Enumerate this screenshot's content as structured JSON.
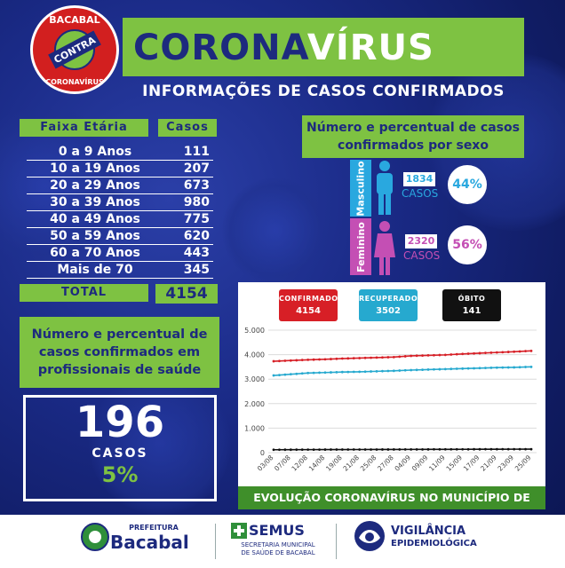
{
  "brand": {
    "logo_top": "BACABAL",
    "logo_mid": "CONTRA",
    "logo_bottom": "CORONAVÍRUS"
  },
  "header": {
    "title_part1": "CORONA",
    "title_part2": "VÍRUS",
    "subtitle": "INFORMAÇÕES DE CASOS CONFIRMADOS"
  },
  "age_table": {
    "col_age": "Faixa Etária",
    "col_cases": "Casos",
    "rows": [
      {
        "label": "0 a 9 Anos",
        "value": "111"
      },
      {
        "label": "10 a 19 Anos",
        "value": "207"
      },
      {
        "label": "20 a 29 Anos",
        "value": "673"
      },
      {
        "label": "30 a 39 Anos",
        "value": "980"
      },
      {
        "label": "40 a 49 Anos",
        "value": "775"
      },
      {
        "label": "50 a 59 Anos",
        "value": "620"
      },
      {
        "label": "60 a 70 Anos",
        "value": "443"
      },
      {
        "label": "Mais de 70",
        "value": "345"
      }
    ],
    "total_label": "TOTAL",
    "total_value": "4154"
  },
  "sex": {
    "title": "Número e percentual de casos confirmados por sexo",
    "male_label": "Masculino",
    "male_count": "1834",
    "male_casos": "CASOS",
    "male_pct": "44%",
    "female_label": "Feminino",
    "female_count": "2320",
    "female_casos": "CASOS",
    "female_pct": "56%",
    "male_color": "#29a8df",
    "female_color": "#c44fb4"
  },
  "health": {
    "title": "Número e percentual de casos confirmados em profissionais de saúde",
    "count": "196",
    "casos": "CASOS",
    "pct": "5%"
  },
  "chart_data": {
    "type": "line",
    "badges": [
      {
        "label": "CONFIRMADOS",
        "value": "4154",
        "color": "#d71f26"
      },
      {
        "label": "RECUPERADOS",
        "value": "3502",
        "color": "#26a9cf"
      },
      {
        "label": "ÓBITO",
        "value": "141",
        "color": "#111111"
      }
    ],
    "x": [
      "03/08",
      "07/08",
      "12/08",
      "14/08",
      "19/08",
      "21/08",
      "25/08",
      "27/08",
      "04/09",
      "09/09",
      "11/09",
      "15/09",
      "17/09",
      "21/09",
      "23/09",
      "25/09"
    ],
    "yticks": [
      "0",
      "1.000",
      "2.000",
      "3.000",
      "4.000",
      "5.000"
    ],
    "ylim": [
      0,
      5000
    ],
    "grid": true,
    "series": [
      {
        "color": "#d71f26",
        "values": [
          3730,
          3760,
          3790,
          3810,
          3840,
          3860,
          3880,
          3900,
          3950,
          3970,
          3990,
          4030,
          4060,
          4090,
          4120,
          4154
        ]
      },
      {
        "color": "#26a9cf",
        "values": [
          3150,
          3200,
          3250,
          3270,
          3290,
          3300,
          3320,
          3340,
          3370,
          3390,
          3410,
          3430,
          3450,
          3470,
          3480,
          3502
        ]
      },
      {
        "color": "#111111",
        "values": [
          118,
          120,
          122,
          124,
          126,
          127,
          128,
          129,
          131,
          133,
          135,
          136,
          138,
          139,
          140,
          141
        ]
      }
    ],
    "caption": "EVOLUÇÃO CORONAVÍRUS NO MUNICÍPIO DE BACABAL"
  },
  "footer": {
    "pref_small": "PREFEITURA",
    "pref_name": "Bacabal",
    "semus": "SEMUS",
    "semus_line1": "SECRETARIA MUNICIPAL",
    "semus_line2": "DE SAÚDE DE BACABAL",
    "vig_line1": "VIGILÂNCIA",
    "vig_line2": "EPIDEMIOLÓGICA"
  }
}
